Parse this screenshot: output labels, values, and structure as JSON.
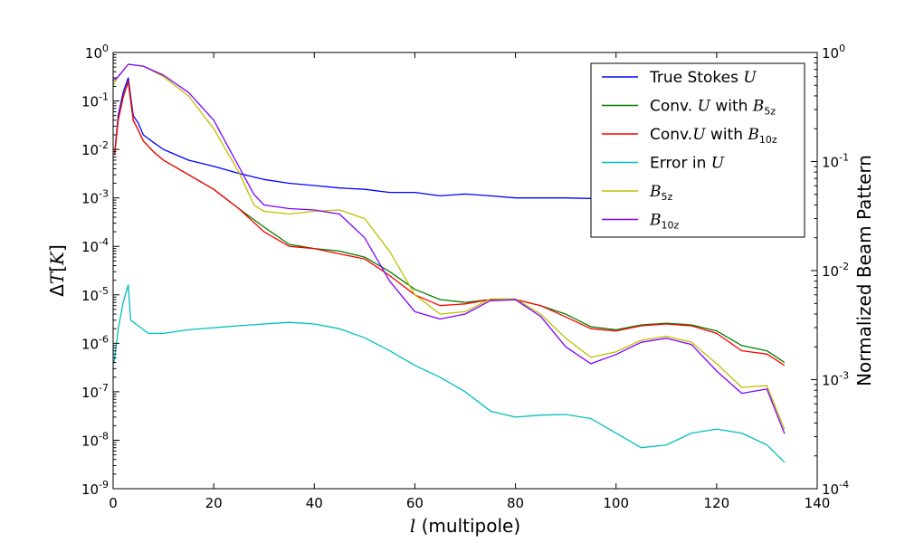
{
  "chart_data": {
    "type": "line",
    "xlabel": "l (multipole)",
    "ylabel": "ΔT[K]",
    "y2label": "Normalized Beam Pattern",
    "xlim": [
      0,
      140
    ],
    "ylim": [
      1e-09,
      1
    ],
    "y2lim": [
      0.0001,
      1
    ],
    "yscale": "log",
    "y2scale": "log",
    "x_ticks": [
      "0",
      "20",
      "40",
      "60",
      "80",
      "100",
      "120",
      "140"
    ],
    "y_ticks": [
      "10^0",
      "10^-1",
      "10^-2",
      "10^-3",
      "10^-4",
      "10^-5",
      "10^-6",
      "10^-7",
      "10^-8",
      "10^-9"
    ],
    "y2_ticks": [
      "10^0",
      "10^-1",
      "10^-2",
      "10^-3",
      "10^-4"
    ],
    "grid": false,
    "legend_position": "top-right",
    "legend": [
      {
        "text": "True Stokes ",
        "math": "U",
        "sub": "",
        "color": "#0000ff"
      },
      {
        "text": "Conv. ",
        "math": "U",
        "text2": " with ",
        "math2": "B",
        "sub": "5z",
        "color": "#008000"
      },
      {
        "text": "Conv.",
        "math": "U",
        "text2": " with ",
        "math2": "B",
        "sub": "10z",
        "color": "#ff0000"
      },
      {
        "text": "Error in  ",
        "math": "U",
        "sub": "",
        "color": "#00bfbf"
      },
      {
        "text": "",
        "math": "B",
        "sub": "5z",
        "color": "#bfbf00"
      },
      {
        "text": "",
        "math": "B",
        "sub": "10z",
        "color": "#8000ff"
      }
    ],
    "series": [
      {
        "name": "True Stokes U",
        "axis": "left",
        "color": "#0000ff",
        "points": [
          [
            0.3,
            0.0085
          ],
          [
            1,
            0.05
          ],
          [
            2,
            0.15
          ],
          [
            3,
            0.3
          ],
          [
            4,
            0.05
          ],
          [
            5,
            0.035
          ],
          [
            6,
            0.02
          ],
          [
            8,
            0.014
          ],
          [
            10,
            0.01
          ],
          [
            15,
            0.006
          ],
          [
            20,
            0.0045
          ],
          [
            25,
            0.0032
          ],
          [
            30,
            0.0024
          ],
          [
            35,
            0.002
          ],
          [
            40,
            0.0018
          ],
          [
            45,
            0.0016
          ],
          [
            50,
            0.0015
          ],
          [
            55,
            0.0013
          ],
          [
            60,
            0.0013
          ],
          [
            65,
            0.0011
          ],
          [
            70,
            0.0012
          ],
          [
            75,
            0.0011
          ],
          [
            80,
            0.001
          ],
          [
            90,
            0.001
          ],
          [
            100,
            0.00095
          ],
          [
            110,
            0.0009
          ],
          [
            120,
            0.00088
          ],
          [
            125,
            0.00087
          ],
          [
            130,
            0.00085
          ],
          [
            133.5,
            0.0004
          ]
        ]
      },
      {
        "name": "Conv. U with B5z",
        "axis": "left",
        "color": "#008000",
        "points": [
          [
            0.3,
            0.008
          ],
          [
            1,
            0.04
          ],
          [
            2,
            0.12
          ],
          [
            3,
            0.25
          ],
          [
            4,
            0.04
          ],
          [
            5,
            0.025
          ],
          [
            6,
            0.015
          ],
          [
            8,
            0.009
          ],
          [
            10,
            0.006
          ],
          [
            15,
            0.003
          ],
          [
            20,
            0.0015
          ],
          [
            25,
            0.0006
          ],
          [
            30,
            0.00025
          ],
          [
            35,
            0.00011
          ],
          [
            40,
            9e-05
          ],
          [
            45,
            8e-05
          ],
          [
            50,
            6e-05
          ],
          [
            55,
            3e-05
          ],
          [
            60,
            1.3e-05
          ],
          [
            65,
            8e-06
          ],
          [
            70,
            7e-06
          ],
          [
            75,
            8e-06
          ],
          [
            80,
            8e-06
          ],
          [
            85,
            6e-06
          ],
          [
            90,
            4e-06
          ],
          [
            95,
            2.2e-06
          ],
          [
            100,
            1.9e-06
          ],
          [
            105,
            2.4e-06
          ],
          [
            110,
            2.6e-06
          ],
          [
            115,
            2.4e-06
          ],
          [
            120,
            1.8e-06
          ],
          [
            125,
            9e-07
          ],
          [
            130,
            7e-07
          ],
          [
            133.5,
            4e-07
          ]
        ]
      },
      {
        "name": "Conv. U with B10z",
        "axis": "left",
        "color": "#ff0000",
        "points": [
          [
            0.3,
            0.008
          ],
          [
            1,
            0.04
          ],
          [
            2,
            0.12
          ],
          [
            3,
            0.25
          ],
          [
            4,
            0.04
          ],
          [
            5,
            0.025
          ],
          [
            6,
            0.015
          ],
          [
            8,
            0.009
          ],
          [
            10,
            0.006
          ],
          [
            15,
            0.003
          ],
          [
            20,
            0.0015
          ],
          [
            25,
            0.0006
          ],
          [
            30,
            0.0002
          ],
          [
            35,
            0.0001
          ],
          [
            40,
            9e-05
          ],
          [
            45,
            7e-05
          ],
          [
            50,
            5.5e-05
          ],
          [
            55,
            2.5e-05
          ],
          [
            60,
            1e-05
          ],
          [
            65,
            6e-06
          ],
          [
            70,
            6.5e-06
          ],
          [
            75,
            8e-06
          ],
          [
            80,
            8e-06
          ],
          [
            85,
            6e-06
          ],
          [
            90,
            3.5e-06
          ],
          [
            95,
            2e-06
          ],
          [
            100,
            1.8e-06
          ],
          [
            105,
            2.3e-06
          ],
          [
            110,
            2.5e-06
          ],
          [
            115,
            2.3e-06
          ],
          [
            120,
            1.6e-06
          ],
          [
            125,
            7e-07
          ],
          [
            130,
            6e-07
          ],
          [
            133.5,
            3.5e-07
          ]
        ]
      },
      {
        "name": "Error in U",
        "axis": "left",
        "color": "#00bfbf",
        "points": [
          [
            0.2,
            4e-07
          ],
          [
            1,
            2e-06
          ],
          [
            2,
            7e-06
          ],
          [
            3,
            1.6e-05
          ],
          [
            3.5,
            3e-06
          ],
          [
            5,
            2.3e-06
          ],
          [
            7,
            1.6e-06
          ],
          [
            10,
            1.6e-06
          ],
          [
            15,
            1.9e-06
          ],
          [
            20,
            2.1e-06
          ],
          [
            25,
            2.3e-06
          ],
          [
            30,
            2.5e-06
          ],
          [
            35,
            2.7e-06
          ],
          [
            40,
            2.5e-06
          ],
          [
            45,
            2e-06
          ],
          [
            50,
            1.3e-06
          ],
          [
            55,
            7e-07
          ],
          [
            60,
            3.5e-07
          ],
          [
            65,
            2e-07
          ],
          [
            70,
            1e-07
          ],
          [
            75,
            4e-08
          ],
          [
            80,
            3e-08
          ],
          [
            85,
            3.3e-08
          ],
          [
            90,
            3.4e-08
          ],
          [
            95,
            2.8e-08
          ],
          [
            100,
            1.4e-08
          ],
          [
            105,
            7e-09
          ],
          [
            110,
            8e-09
          ],
          [
            115,
            1.4e-08
          ],
          [
            120,
            1.7e-08
          ],
          [
            125,
            1.4e-08
          ],
          [
            130,
            8e-09
          ],
          [
            133.5,
            3.5e-09
          ]
        ]
      },
      {
        "name": "B5z",
        "axis": "right",
        "color": "#bfbf00",
        "points": [
          [
            0,
            0.5
          ],
          [
            1,
            0.6
          ],
          [
            3,
            0.78
          ],
          [
            6,
            0.75
          ],
          [
            10,
            0.6
          ],
          [
            15,
            0.4
          ],
          [
            20,
            0.2
          ],
          [
            25,
            0.08
          ],
          [
            28,
            0.04
          ],
          [
            30,
            0.035
          ],
          [
            35,
            0.033
          ],
          [
            40,
            0.035
          ],
          [
            45,
            0.036
          ],
          [
            50,
            0.03
          ],
          [
            55,
            0.015
          ],
          [
            60,
            0.006
          ],
          [
            65,
            0.004
          ],
          [
            70,
            0.0042
          ],
          [
            75,
            0.0055
          ],
          [
            80,
            0.0055
          ],
          [
            85,
            0.004
          ],
          [
            90,
            0.0024
          ],
          [
            95,
            0.0016
          ],
          [
            100,
            0.0018
          ],
          [
            105,
            0.0023
          ],
          [
            110,
            0.0025
          ],
          [
            115,
            0.0022
          ],
          [
            120,
            0.0014
          ],
          [
            125,
            0.00085
          ],
          [
            130,
            0.00088
          ],
          [
            133.5,
            0.00035
          ]
        ]
      },
      {
        "name": "B10z",
        "axis": "right",
        "color": "#8000ff",
        "points": [
          [
            0,
            0.55
          ],
          [
            1,
            0.6
          ],
          [
            3,
            0.78
          ],
          [
            6,
            0.75
          ],
          [
            10,
            0.62
          ],
          [
            15,
            0.43
          ],
          [
            20,
            0.24
          ],
          [
            25,
            0.09
          ],
          [
            28,
            0.05
          ],
          [
            30,
            0.04
          ],
          [
            35,
            0.037
          ],
          [
            40,
            0.036
          ],
          [
            45,
            0.033
          ],
          [
            50,
            0.02
          ],
          [
            55,
            0.008
          ],
          [
            60,
            0.0042
          ],
          [
            65,
            0.0036
          ],
          [
            70,
            0.004
          ],
          [
            75,
            0.0053
          ],
          [
            80,
            0.0054
          ],
          [
            85,
            0.0038
          ],
          [
            90,
            0.002
          ],
          [
            95,
            0.0014
          ],
          [
            100,
            0.0017
          ],
          [
            105,
            0.0022
          ],
          [
            110,
            0.0024
          ],
          [
            115,
            0.0021
          ],
          [
            120,
            0.0012
          ],
          [
            125,
            0.00075
          ],
          [
            130,
            0.00082
          ],
          [
            133.5,
            0.00032
          ]
        ]
      }
    ]
  }
}
